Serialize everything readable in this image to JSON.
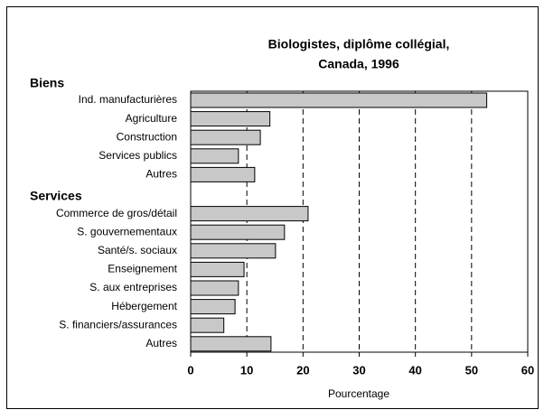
{
  "chart_data": {
    "type": "bar",
    "orientation": "horizontal",
    "title": [
      "Biologistes, diplôme collégial,",
      "Canada, 1996"
    ],
    "x_label": "Pourcentage",
    "groups": [
      {
        "name": "Biens",
        "categories": [
          "Ind. manufacturières",
          "Agriculture",
          "Construction",
          "Services publics",
          "Autres"
        ],
        "values": [
          52.7,
          14.1,
          12.4,
          8.5,
          11.4
        ]
      },
      {
        "name": "Services",
        "categories": [
          "Commerce de gros/détail",
          "S. gouvernementaux",
          "Santé/s. sociaux",
          "Enseignement",
          "S. aux entreprises",
          "Hébergement",
          "S. financiers/assurances",
          "Autres"
        ],
        "values": [
          20.9,
          16.7,
          15.1,
          9.5,
          8.5,
          7.9,
          5.9,
          14.3
        ]
      }
    ],
    "color": "#c8c8c8",
    "xlim": [
      0,
      60
    ],
    "xticks": [
      0,
      10,
      20,
      30,
      40,
      50,
      60
    ],
    "grid": true
  }
}
